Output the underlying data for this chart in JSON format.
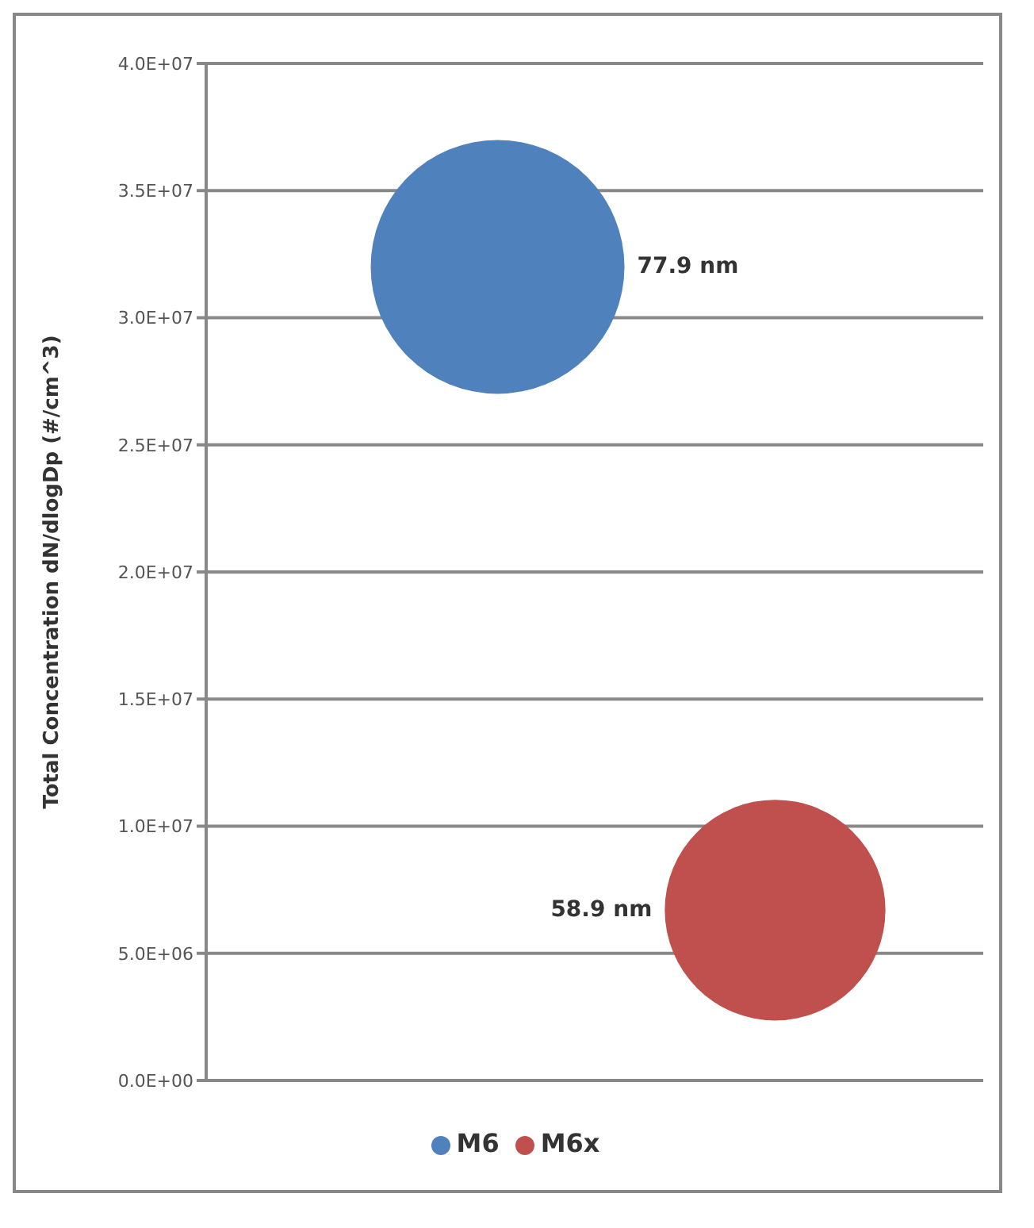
{
  "chart_data": {
    "type": "bubble",
    "ylabel": "Total Concentration dN/dlogDp (#/cm^3)",
    "categories": [
      null,
      null
    ],
    "series": [
      {
        "name": "M6",
        "color": "#4f81bd",
        "values": [
          32000000,
          null
        ],
        "sizes": [
          77.9,
          null
        ],
        "value_labels": [
          "77.9 nm",
          null
        ]
      },
      {
        "name": "M6x",
        "color": "#c0504d",
        "values": [
          null,
          6700000
        ],
        "sizes": [
          null,
          58.9
        ],
        "value_labels": [
          null,
          "58.9 nm"
        ]
      }
    ],
    "ylim": [
      0,
      40000000
    ],
    "yticks": [
      {
        "value": 0,
        "label": "0.0E+00"
      },
      {
        "value": 5000000,
        "label": "5.0E+06"
      },
      {
        "value": 10000000,
        "label": "1.0E+07"
      },
      {
        "value": 15000000,
        "label": "1.5E+07"
      },
      {
        "value": 20000000,
        "label": "2.0E+07"
      },
      {
        "value": 25000000,
        "label": "2.5E+07"
      },
      {
        "value": 30000000,
        "label": "3.0E+07"
      },
      {
        "value": 35000000,
        "label": "3.5E+07"
      },
      {
        "value": 40000000,
        "label": "4.0E+07"
      }
    ],
    "grid": "y",
    "legend": "bottom",
    "tick_labels": "y"
  }
}
